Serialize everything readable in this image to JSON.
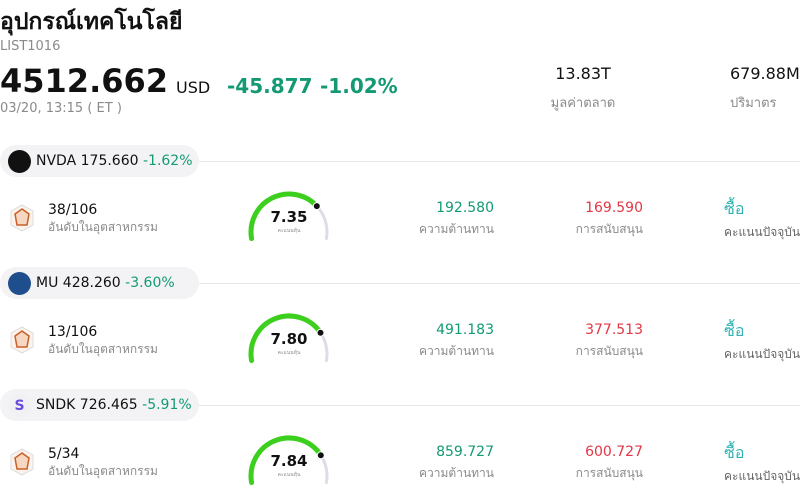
{
  "header": {
    "title": "อุปกรณ์เทคโนโลยี",
    "code": "LIST1016",
    "price": "4512.662",
    "currency": "USD",
    "change": "-45.877",
    "change_pct": "-1.02%",
    "time": "03/20, 13:15 ( ET )"
  },
  "stats": [
    {
      "value": "13.83T",
      "label": "มูลค่าตลาด"
    },
    {
      "value": "679.88M",
      "label": "ปริมาตร"
    }
  ],
  "stocks": [
    {
      "ticker": "NVDA",
      "price": "175.660",
      "change": "-1.62%",
      "rank": "38/106",
      "rank_label": "อันดับในอุตสาหกรรม",
      "score": "7.35",
      "score_label": "คะแนนหุ้น",
      "resistance": "192.580",
      "resistance_label": "ความต้านทาน",
      "support": "169.590",
      "support_label": "การสนับสนุน",
      "rating": "ซื้อ",
      "rating_label": "คะแนนปัจจุบัน"
    },
    {
      "ticker": "MU",
      "price": "428.260",
      "change": "-3.60%",
      "rank": "13/106",
      "rank_label": "อันดับในอุตสาหกรรม",
      "score": "7.80",
      "score_label": "คะแนนหุ้น",
      "resistance": "491.183",
      "resistance_label": "ความต้านทาน",
      "support": "377.513",
      "support_label": "การสนับสนุน",
      "rating": "ซื้อ",
      "rating_label": "คะแนนปัจจุบัน"
    },
    {
      "ticker": "SNDK",
      "logo_text": "S",
      "price": "726.465",
      "change": "-5.91%",
      "rank": "5/34",
      "rank_label": "อันดับในอุตสาหกรรม",
      "score": "7.84",
      "score_label": "คะแนนหุ้น",
      "resistance": "859.727",
      "resistance_label": "ความต้านทาน",
      "support": "600.727",
      "support_label": "การสนับสนุน",
      "rating": "ซื้อ",
      "rating_label": "คะแนนปัจจุบัน"
    }
  ]
}
